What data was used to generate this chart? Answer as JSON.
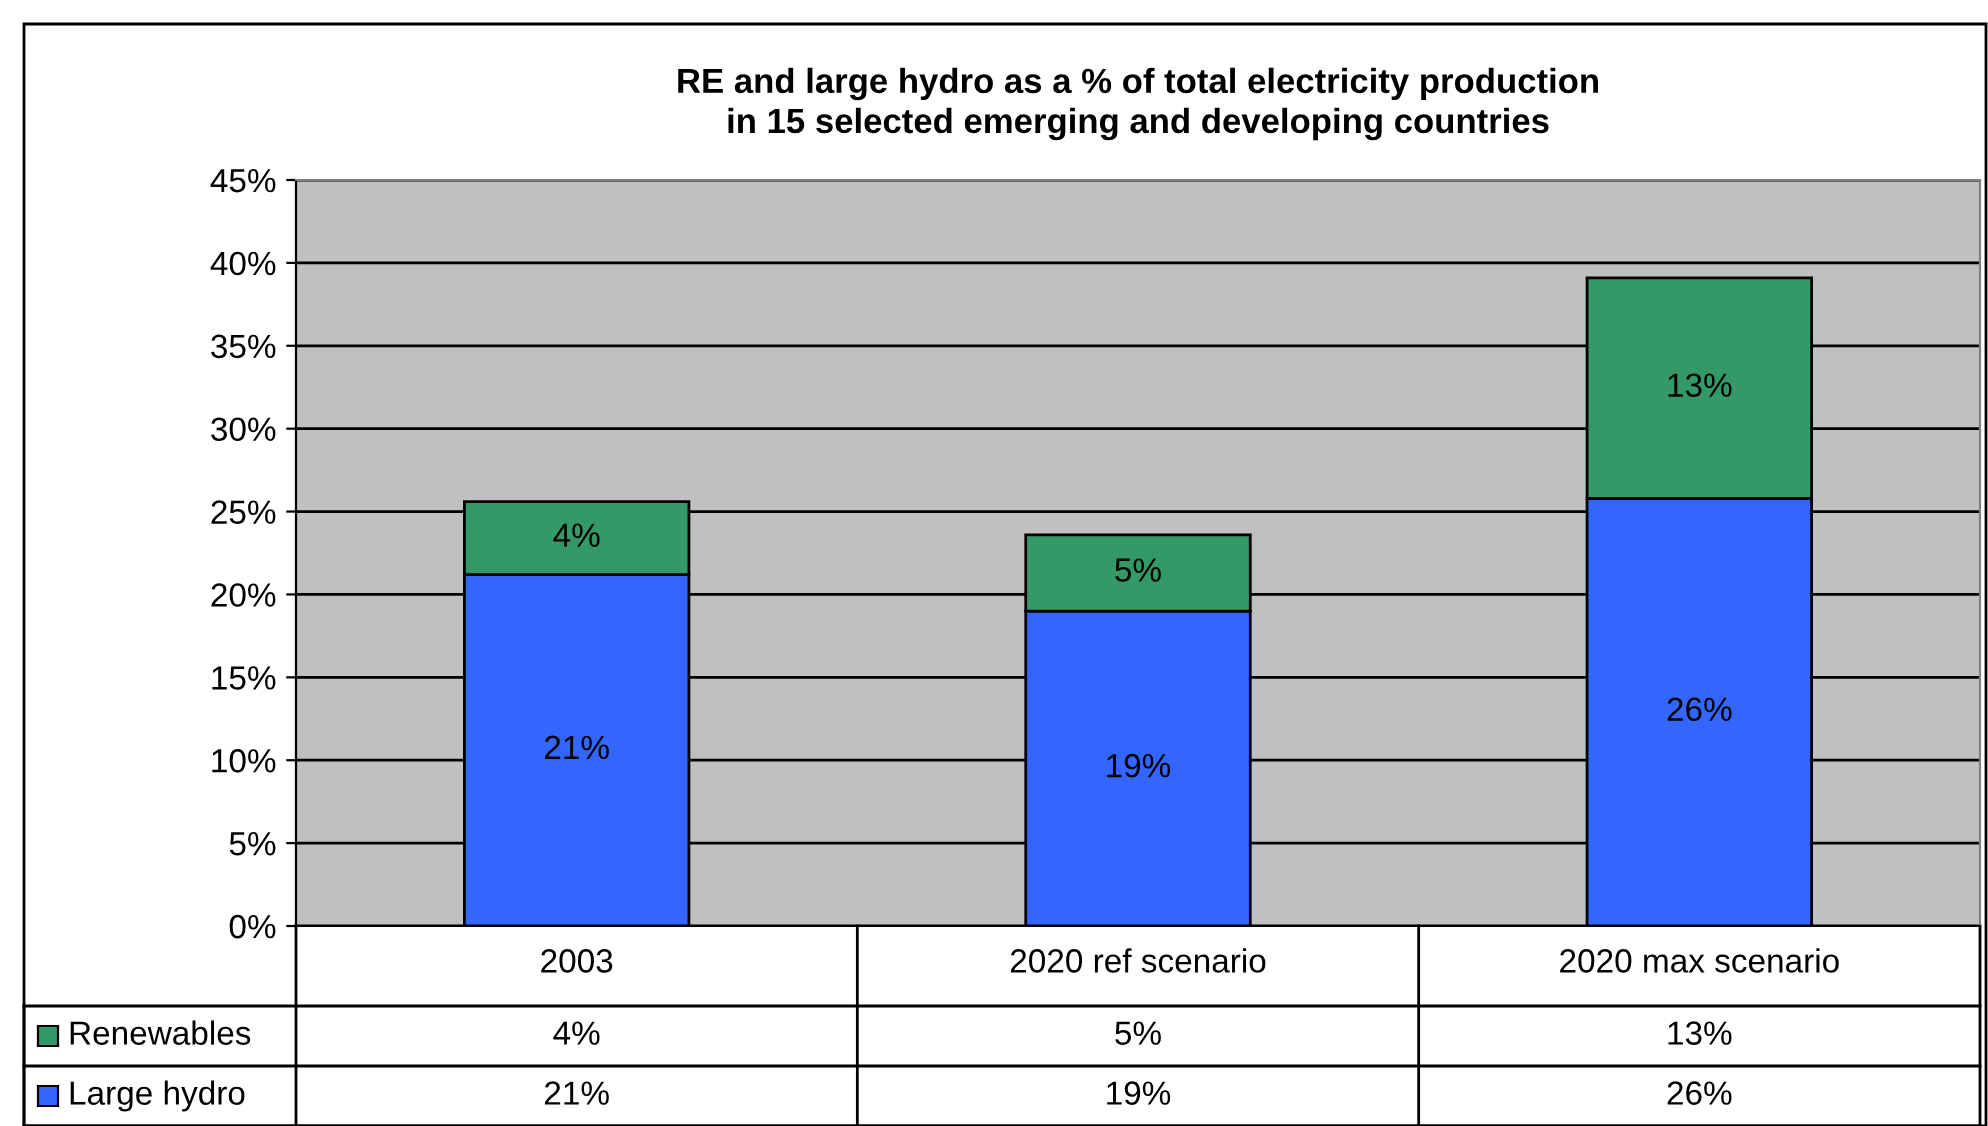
{
  "chart_data": {
    "type": "bar",
    "stacked": true,
    "title": "RE and large hydro as a % of total electricity production\nin 15 selected emerging and developing countries",
    "categories": [
      "2003",
      "2020 ref scenario",
      "2020 max scenario"
    ],
    "series": [
      {
        "name": "Large hydro",
        "color": "#3366ff",
        "values": [
          21.2,
          19.0,
          25.8
        ],
        "value_labels": [
          "21%",
          "19%",
          "26%"
        ]
      },
      {
        "name": "Renewables",
        "color": "#339966",
        "values": [
          4.4,
          4.6,
          13.3
        ],
        "value_labels": [
          "4%",
          "5%",
          "13%"
        ]
      }
    ],
    "ylim": [
      0,
      45
    ],
    "yticks": [
      {
        "value": 0,
        "label": "0%"
      },
      {
        "value": 5,
        "label": "5%"
      },
      {
        "value": 10,
        "label": "10%"
      },
      {
        "value": 15,
        "label": "15%"
      },
      {
        "value": 20,
        "label": "20%"
      },
      {
        "value": 25,
        "label": "25%"
      },
      {
        "value": 30,
        "label": "30%"
      },
      {
        "value": 35,
        "label": "35%"
      },
      {
        "value": 40,
        "label": "40%"
      },
      {
        "value": 45,
        "label": "45%"
      }
    ],
    "grid": "y",
    "legend": "bottom left"
  }
}
